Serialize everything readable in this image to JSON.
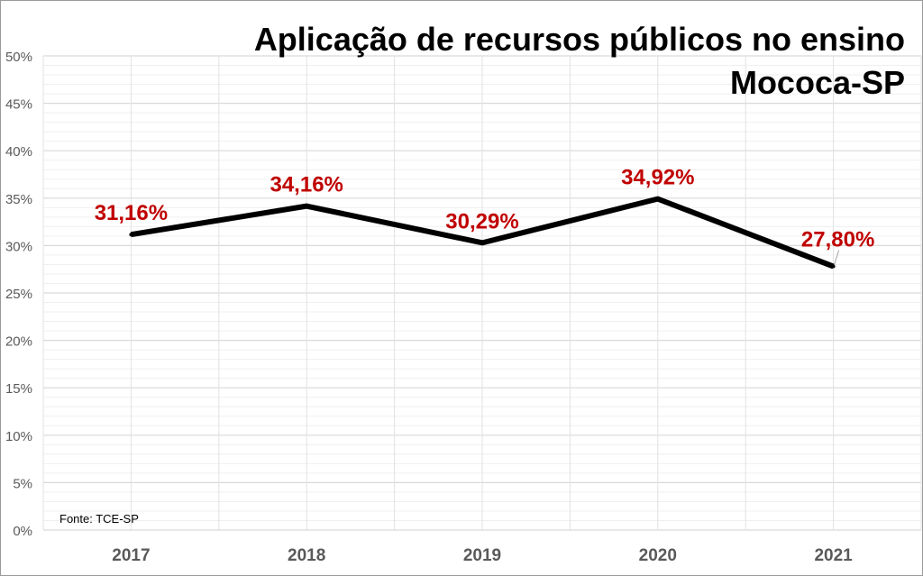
{
  "chart_data": {
    "type": "line",
    "title": "Aplicação de recursos públicos no ensino",
    "subtitle": "Mococa-SP",
    "categories": [
      "2017",
      "2018",
      "2019",
      "2020",
      "2021"
    ],
    "series": [
      {
        "values": [
          31.16,
          34.16,
          30.29,
          34.92,
          27.8
        ],
        "labels": [
          "31,16%",
          "34,16%",
          "30,29%",
          "34,92%",
          "27,80%"
        ],
        "color": "#000000"
      }
    ],
    "ylim": [
      0,
      50
    ],
    "yticks": [
      "0%",
      "5%",
      "10%",
      "15%",
      "20%",
      "25%",
      "30%",
      "35%",
      "40%",
      "45%",
      "50%"
    ],
    "grid": true,
    "data_label_color": "#c00000",
    "source": "Fonte: TCE-SP"
  }
}
